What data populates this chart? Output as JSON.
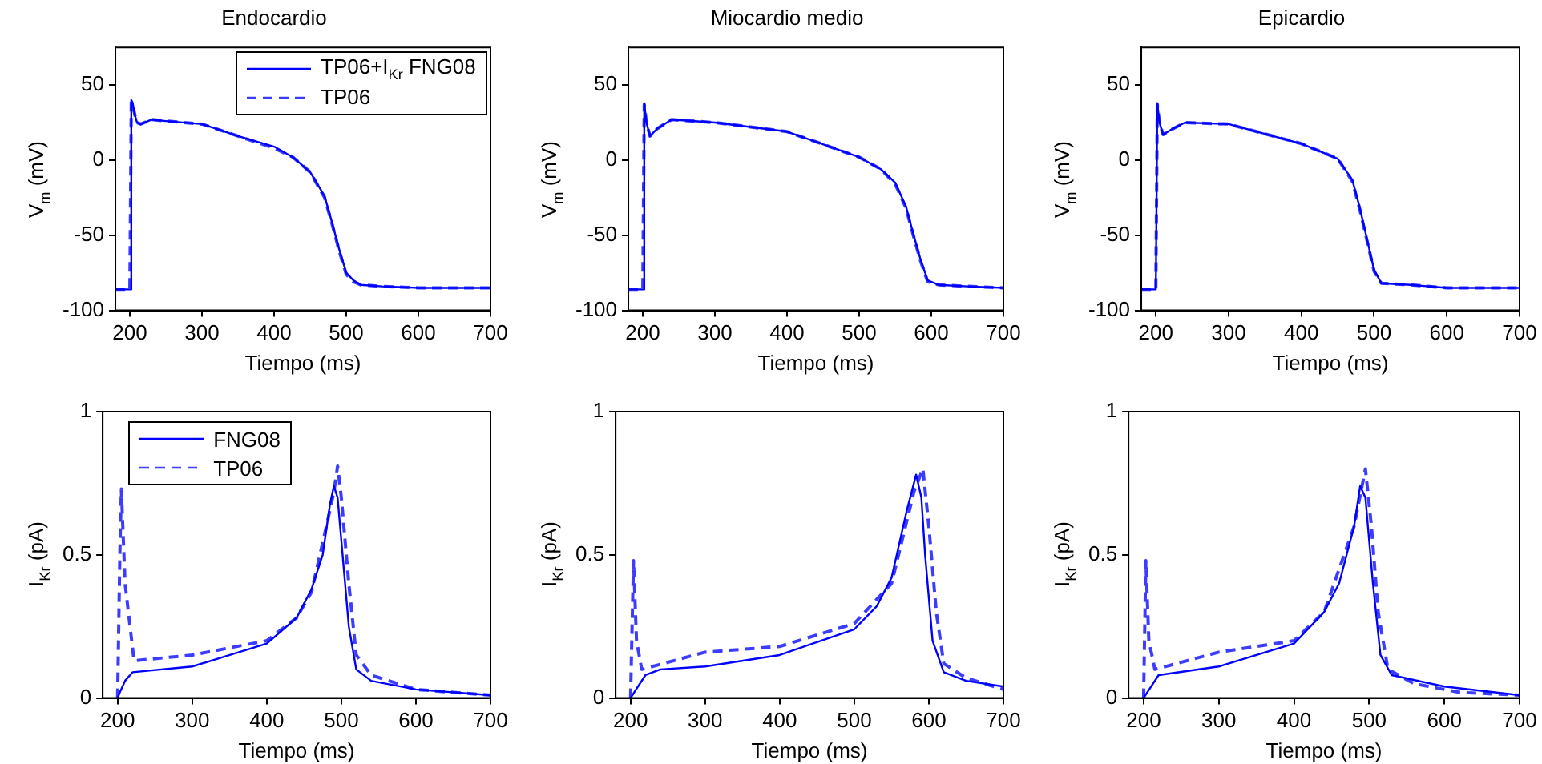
{
  "chart_data": [
    {
      "type": "line",
      "title": "Endocardio",
      "xlabel": "Tiempo (ms)",
      "ylabel": "V$_{m}$ (mV)",
      "xlim": [
        180,
        700
      ],
      "xticks": [
        200,
        300,
        400,
        500,
        600,
        700
      ],
      "ylim": [
        -100,
        75
      ],
      "yticks": [
        -100,
        -50,
        0,
        50
      ],
      "legend": "top right",
      "series": [
        {
          "name": "TP06+I$_{Kr}$ FNG08",
          "color": "#0000ff",
          "line_style": "solid",
          "x": [
            180,
            199,
            200,
            202,
            204,
            207,
            210,
            215,
            220,
            230,
            250,
            300,
            350,
            400,
            426,
            450,
            470,
            480,
            490,
            500,
            510,
            520,
            550,
            600,
            650,
            700
          ],
          "values": [
            -86,
            -86,
            -86,
            40,
            38,
            30,
            25,
            24,
            25,
            27,
            26,
            24,
            16,
            9,
            2,
            -8,
            -24,
            -41,
            -59,
            -75,
            -80,
            -83,
            -84,
            -85,
            -85,
            -85
          ]
        },
        {
          "name": "TP06",
          "color": "#3c3cff",
          "line_style": "dashed",
          "x": [
            180,
            199,
            200,
            202,
            204,
            207,
            210,
            215,
            220,
            230,
            250,
            300,
            350,
            400,
            426,
            450,
            470,
            480,
            490,
            500,
            510,
            520,
            550,
            600,
            650,
            700
          ],
          "values": [
            -86,
            -86,
            -86,
            39,
            37,
            30,
            25,
            24,
            25,
            27,
            26,
            24,
            16,
            8,
            2,
            -8,
            -25,
            -42,
            -60,
            -76,
            -81,
            -83,
            -84,
            -85,
            -85,
            -85
          ]
        }
      ]
    },
    {
      "type": "line",
      "title": "Miocardio medio",
      "xlabel": "Tiempo (ms)",
      "ylabel": "V$_{m}$ (mV)",
      "xlim": [
        180,
        700
      ],
      "xticks": [
        200,
        300,
        400,
        500,
        600,
        700
      ],
      "ylim": [
        -100,
        75
      ],
      "yticks": [
        -100,
        -50,
        0,
        50
      ],
      "series": [
        {
          "color": "#0000ff",
          "line_style": "solid",
          "x": [
            180,
            199,
            200,
            202,
            205,
            210,
            220,
            240,
            300,
            400,
            500,
            530,
            550,
            565,
            575,
            585,
            595,
            610,
            650,
            700
          ],
          "values": [
            -86,
            -86,
            -86,
            38,
            25,
            16,
            21,
            27,
            25,
            19,
            2,
            -6,
            -15,
            -31,
            -49,
            -66,
            -80,
            -83,
            -84,
            -85
          ]
        },
        {
          "color": "#3c3cff",
          "line_style": "dashed",
          "x": [
            180,
            199,
            200,
            202,
            205,
            210,
            220,
            240,
            300,
            400,
            500,
            530,
            550,
            565,
            575,
            585,
            595,
            610,
            650,
            700
          ],
          "values": [
            -86,
            -86,
            -86,
            37,
            25,
            16,
            21,
            27,
            25,
            19,
            2,
            -6,
            -16,
            -32,
            -50,
            -67,
            -81,
            -83,
            -84,
            -85
          ]
        }
      ]
    },
    {
      "type": "line",
      "title": "Epicardio",
      "xlabel": "Tiempo (ms)",
      "ylabel": "V$_{m}$ (mV)",
      "xlim": [
        180,
        700
      ],
      "xticks": [
        200,
        300,
        400,
        500,
        600,
        700
      ],
      "ylim": [
        -100,
        75
      ],
      "yticks": [
        -100,
        -50,
        0,
        50
      ],
      "series": [
        {
          "color": "#0000ff",
          "line_style": "solid",
          "x": [
            180,
            199,
            200,
            202,
            205,
            210,
            220,
            240,
            300,
            400,
            450,
            470,
            480,
            490,
            500,
            510,
            550,
            600,
            700
          ],
          "values": [
            -86,
            -86,
            -86,
            38,
            25,
            17,
            20,
            25,
            24,
            11,
            1,
            -13,
            -31,
            -52,
            -73,
            -82,
            -83,
            -85,
            -85
          ]
        },
        {
          "color": "#3c3cff",
          "line_style": "dashed",
          "x": [
            180,
            199,
            200,
            202,
            205,
            210,
            220,
            240,
            300,
            400,
            450,
            470,
            480,
            490,
            500,
            510,
            550,
            600,
            700
          ],
          "values": [
            -86,
            -86,
            -86,
            37,
            25,
            17,
            20,
            25,
            24,
            11,
            1,
            -14,
            -32,
            -53,
            -74,
            -82,
            -83,
            -85,
            -85
          ]
        }
      ]
    },
    {
      "type": "line",
      "xlabel": "Tiempo (ms)",
      "ylabel": "I$_{Kr}$ (pA)",
      "xlim": [
        180,
        700
      ],
      "xticks": [
        200,
        300,
        400,
        500,
        600,
        700
      ],
      "ylim": [
        0,
        1
      ],
      "yticks": [
        0,
        0.5,
        1
      ],
      "legend": "top left",
      "series": [
        {
          "name": "FNG08",
          "color": "#0000ff",
          "line_style": "solid",
          "x": [
            200,
            203,
            210,
            220,
            300,
            400,
            440,
            460,
            475,
            485,
            490,
            495,
            500,
            510,
            520,
            540,
            600,
            700
          ],
          "values": [
            0,
            0.02,
            0.06,
            0.09,
            0.11,
            0.19,
            0.28,
            0.38,
            0.5,
            0.68,
            0.74,
            0.7,
            0.55,
            0.25,
            0.1,
            0.06,
            0.03,
            0.01
          ]
        },
        {
          "name": "TP06",
          "color": "#3c3cff",
          "line_style": "dashed",
          "x": [
            200,
            203,
            205,
            210,
            222,
            300,
            400,
            440,
            460,
            480,
            490,
            495,
            500,
            510,
            520,
            540,
            600,
            700
          ],
          "values": [
            0,
            0.5,
            0.73,
            0.4,
            0.13,
            0.15,
            0.2,
            0.28,
            0.37,
            0.6,
            0.72,
            0.81,
            0.7,
            0.4,
            0.15,
            0.08,
            0.03,
            0.01
          ]
        }
      ]
    },
    {
      "type": "line",
      "xlabel": "Tiempo (ms)",
      "ylabel": "I$_{Kr}$ (pA)",
      "xlim": [
        180,
        700
      ],
      "xticks": [
        200,
        300,
        400,
        500,
        600,
        700
      ],
      "ylim": [
        0,
        1
      ],
      "yticks": [
        0,
        0.5,
        1
      ],
      "series": [
        {
          "color": "#0000ff",
          "line_style": "solid",
          "x": [
            200,
            205,
            220,
            240,
            300,
            400,
            500,
            530,
            550,
            570,
            583,
            590,
            595,
            605,
            620,
            650,
            700
          ],
          "values": [
            0,
            0.02,
            0.08,
            0.1,
            0.11,
            0.15,
            0.24,
            0.32,
            0.42,
            0.65,
            0.78,
            0.7,
            0.5,
            0.2,
            0.09,
            0.06,
            0.04
          ]
        },
        {
          "color": "#3c3cff",
          "line_style": "dashed",
          "x": [
            200,
            204,
            208,
            215,
            300,
            400,
            500,
            550,
            580,
            592,
            600,
            610,
            620,
            650,
            700
          ],
          "values": [
            0,
            0.48,
            0.2,
            0.1,
            0.16,
            0.18,
            0.26,
            0.4,
            0.72,
            0.8,
            0.6,
            0.3,
            0.12,
            0.07,
            0.03
          ]
        }
      ]
    },
    {
      "type": "line",
      "xlabel": "Tiempo (ms)",
      "ylabel": "I$_{Kr}$ (pA)",
      "xlim": [
        180,
        700
      ],
      "xticks": [
        200,
        300,
        400,
        500,
        600,
        700
      ],
      "ylim": [
        0,
        1
      ],
      "yticks": [
        0,
        0.5,
        1
      ],
      "series": [
        {
          "color": "#0000ff",
          "line_style": "solid",
          "x": [
            200,
            205,
            220,
            300,
            400,
            440,
            460,
            480,
            488,
            495,
            505,
            515,
            530,
            600,
            700
          ],
          "values": [
            0,
            0.02,
            0.08,
            0.11,
            0.19,
            0.3,
            0.4,
            0.6,
            0.74,
            0.7,
            0.4,
            0.15,
            0.08,
            0.04,
            0.01
          ]
        },
        {
          "color": "#3c3cff",
          "line_style": "dashed",
          "x": [
            200,
            203,
            207,
            215,
            300,
            400,
            440,
            480,
            495,
            503,
            512,
            525,
            560,
            620,
            700
          ],
          "values": [
            0,
            0.48,
            0.2,
            0.1,
            0.16,
            0.2,
            0.3,
            0.6,
            0.8,
            0.6,
            0.3,
            0.1,
            0.05,
            0.02,
            0.01
          ]
        }
      ]
    }
  ]
}
